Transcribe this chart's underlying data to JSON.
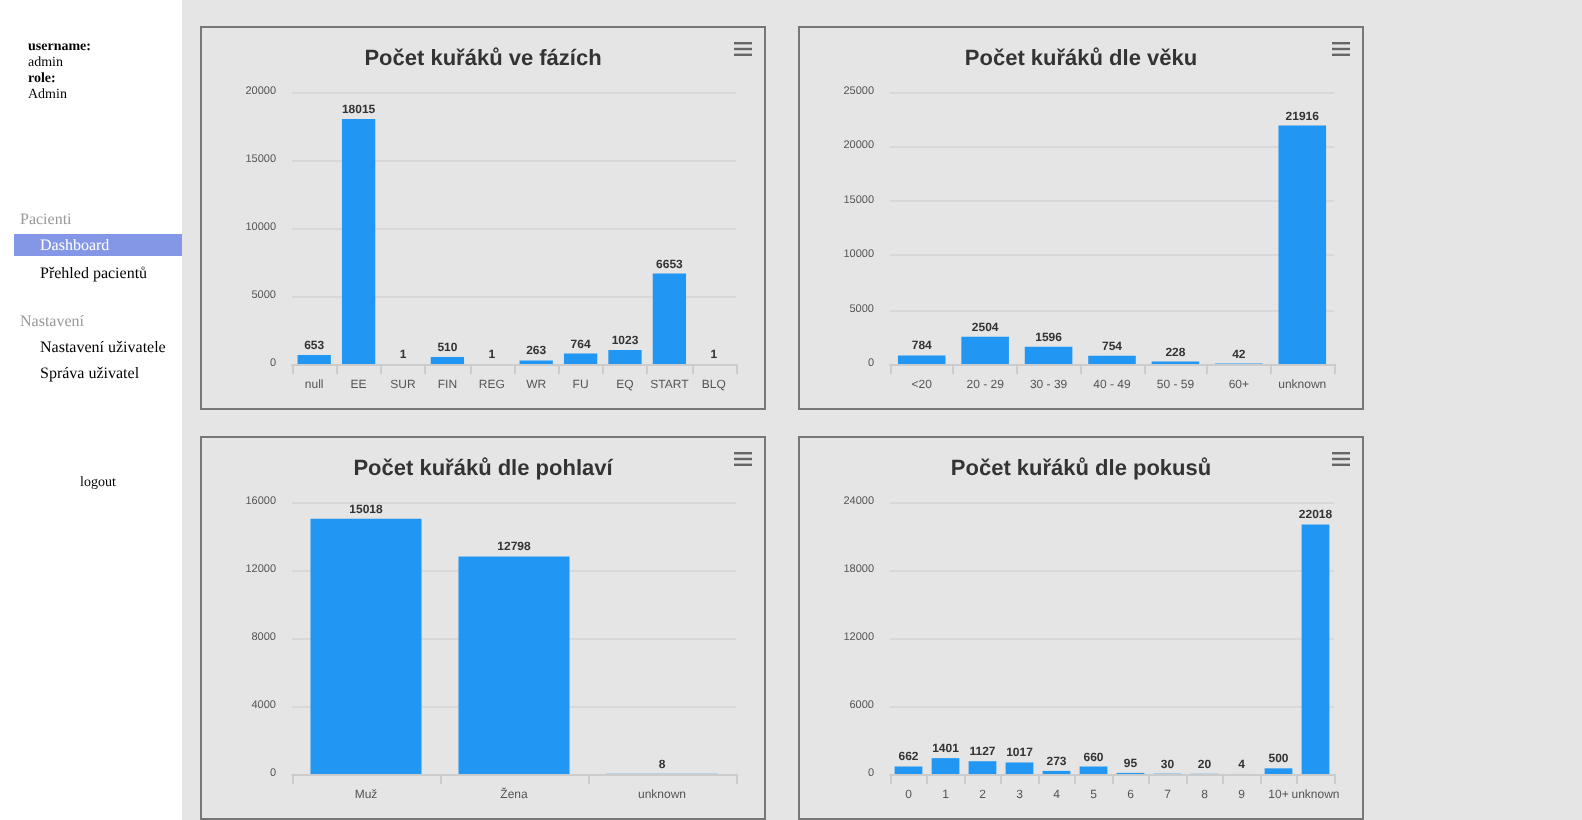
{
  "chart_data": [
    {
      "type": "bar",
      "title": "Počet kuřáků ve fázích",
      "categories": [
        "null",
        "EE",
        "SUR",
        "FIN",
        "REG",
        "WR",
        "FU",
        "EQ",
        "START",
        "BLQ"
      ],
      "values": [
        653,
        18015,
        1,
        510,
        1,
        263,
        764,
        1023,
        6653,
        1
      ],
      "color": "#2196f3",
      "ylim": [
        0,
        20000
      ],
      "yticks": [
        0,
        5000,
        10000,
        15000,
        20000
      ],
      "grid": "y",
      "data_labels": true
    },
    {
      "type": "bar",
      "title": "Počet kuřáků dle věku",
      "categories": [
        "<20",
        "20 - 29",
        "30 - 39",
        "40 - 49",
        "50 - 59",
        "60+",
        "unknown"
      ],
      "values": [
        784,
        2504,
        1596,
        754,
        228,
        42,
        21916
      ],
      "color": "#2196f3",
      "ylim": [
        0,
        25000
      ],
      "yticks": [
        0,
        5000,
        10000,
        15000,
        20000,
        25000
      ],
      "grid": "y",
      "data_labels": true
    },
    {
      "type": "bar",
      "title": "Počet kuřáků dle pohlaví",
      "categories": [
        "Muž",
        "Žena",
        "unknown"
      ],
      "values": [
        15018,
        12798,
        8
      ],
      "color": "#2196f3",
      "ylim": [
        0,
        16000
      ],
      "yticks": [
        0,
        4000,
        8000,
        12000,
        16000
      ],
      "grid": "y",
      "data_labels": true
    },
    {
      "type": "bar",
      "title": "Počet kuřáků dle pokusů",
      "categories": [
        "0",
        "1",
        "2",
        "3",
        "4",
        "5",
        "6",
        "7",
        "8",
        "9",
        "10+",
        "unknown"
      ],
      "values": [
        662,
        1401,
        1127,
        1017,
        273,
        660,
        95,
        30,
        20,
        4,
        500,
        22018
      ],
      "color": "#2196f3",
      "ylim": [
        0,
        24000
      ],
      "yticks": [
        0,
        6000,
        12000,
        18000,
        24000
      ],
      "grid": "y",
      "data_labels": true
    },
    {
      "type": "other",
      "annotations": [
        "username:",
        "admin",
        "role:",
        "Admin",
        "Pacienti",
        "Dashboard",
        "Přehled pacientů",
        "Nastavení",
        "Nastavení uživatele",
        "Správa uživatel",
        "logout"
      ]
    }
  ]
}
